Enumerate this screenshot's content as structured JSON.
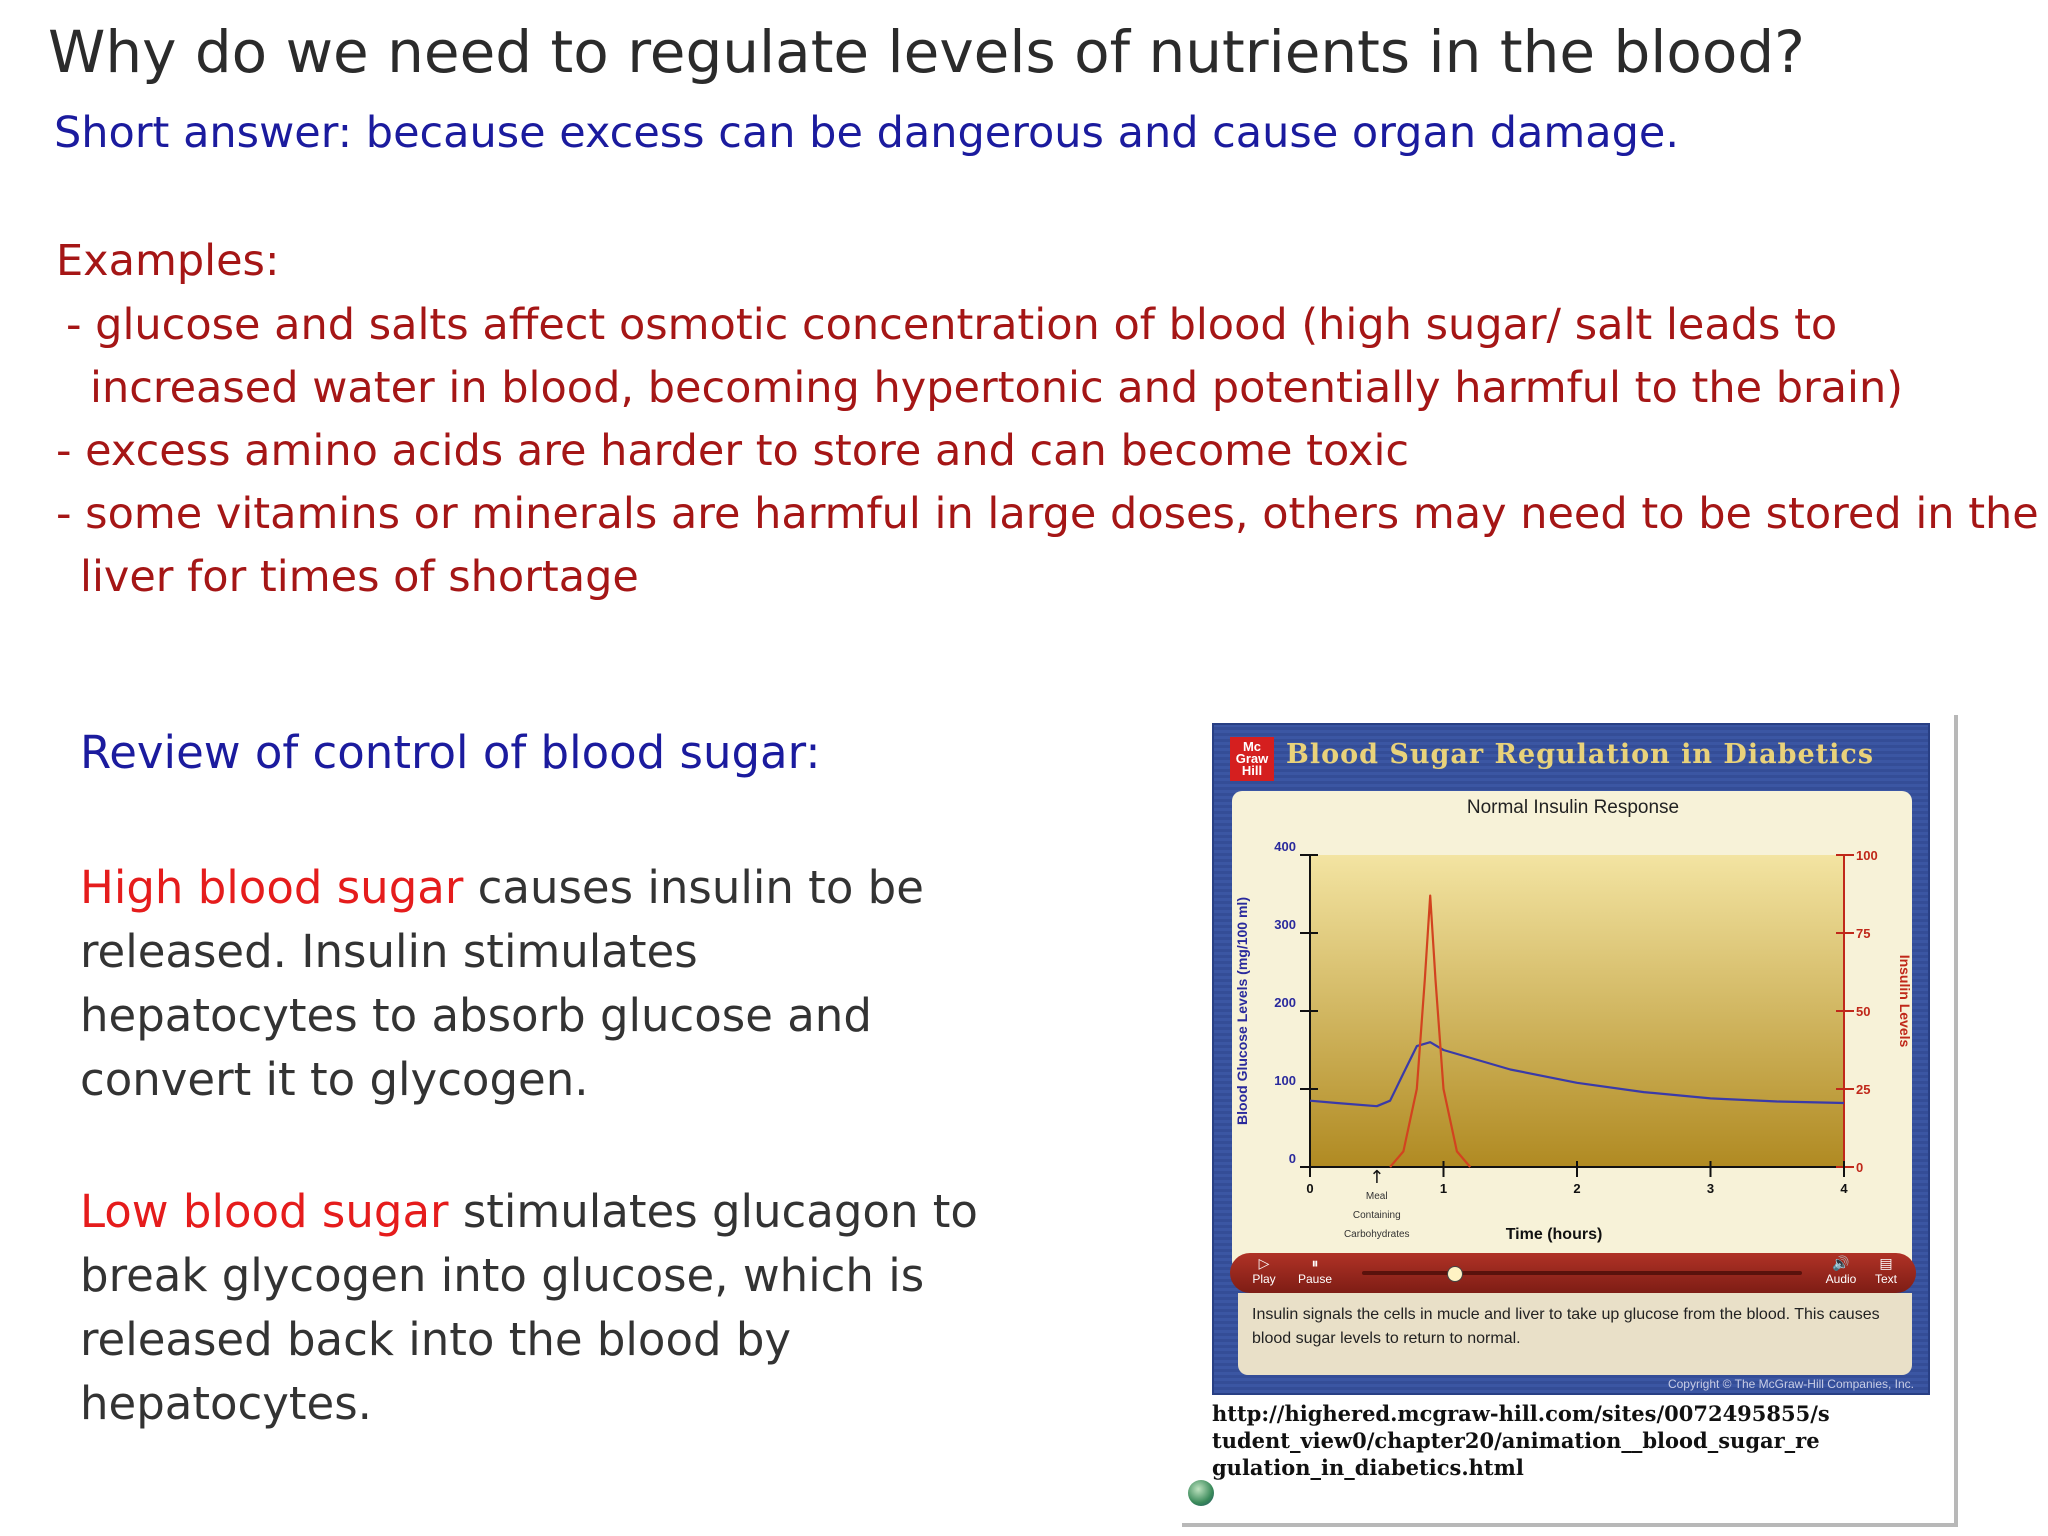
{
  "slide": {
    "title": "Why do we need to regulate levels of nutrients in the blood?",
    "short_answer": "Short answer: because excess can be dangerous and cause organ damage.",
    "examples_heading": "Examples:",
    "examples": [
      "- glucose and salts affect osmotic concentration of blood (high sugar/ salt leads to",
      "increased water in blood, becoming hypertonic and potentially harmful to the brain)",
      "- excess amino acids are harder to store and can become toxic",
      "- some vitamins or minerals are harmful in large doses, others may need to be stored in the",
      "liver for times of shortage"
    ],
    "review_heading": "Review of control of blood sugar:",
    "high": {
      "highlight": "High blood sugar",
      "rest": " causes insulin to be released. Insulin stimulates hepatocytes to absorb glucose and convert it to glycogen."
    },
    "low": {
      "highlight": "Low blood sugar",
      "rest": " stimulates glucagon to break glycogen into glucose, which is released back into the blood by hepatocytes."
    }
  },
  "animation": {
    "logo": "Mc Graw Hill",
    "title": "Blood Sugar Regulation in Diabetics",
    "controls": {
      "play": "Play",
      "pause": "Pause",
      "audio": "Audio",
      "text": "Text",
      "progress": 0.21
    },
    "caption": "Insulin signals the cells in mucle and liver to take up glucose from the blood. This causes blood sugar levels to return to normal.",
    "copyright": "Copyright © The McGraw-Hill Companies, Inc.",
    "url": "http://highered.mcgraw-hill.com/sites/0072495855/student_view0/chapter20/animation__blood_sugar_regulation_in_diabetics.html"
  },
  "chart_data": {
    "type": "line",
    "title": "Normal Insulin Response",
    "xlabel": "Time (hours)",
    "ylabel": "Blood Glucose Levels (mg/100 ml)",
    "y2label": "Insulin Levels",
    "xlim": [
      0,
      4
    ],
    "ylim": [
      0,
      400
    ],
    "y2lim": [
      0,
      100
    ],
    "x_ticks": [
      "0",
      "1",
      "2",
      "3",
      "4"
    ],
    "y_ticks": [
      "0",
      "100",
      "200",
      "300",
      "400"
    ],
    "y2_ticks": [
      "0",
      "25",
      "50",
      "75",
      "100"
    ],
    "annotation": {
      "x": 0.5,
      "text": "Meal Containing Carbohydrates"
    },
    "grid": false,
    "series": [
      {
        "axis": "left",
        "color": "#3a3aa8",
        "x": [
          0,
          0.2,
          0.5,
          0.6,
          0.7,
          0.8,
          0.9,
          1.0,
          1.5,
          2.0,
          2.5,
          3.0,
          3.5,
          4.0
        ],
        "y": [
          85,
          82,
          78,
          85,
          120,
          155,
          160,
          150,
          125,
          108,
          96,
          88,
          84,
          82
        ]
      },
      {
        "axis": "right",
        "color": "#d2431f",
        "x": [
          0.6,
          0.7,
          0.8,
          0.86,
          0.9,
          0.94,
          1.0,
          1.1,
          1.2
        ],
        "y": [
          0,
          5,
          25,
          60,
          87,
          60,
          25,
          5,
          0
        ]
      }
    ]
  }
}
